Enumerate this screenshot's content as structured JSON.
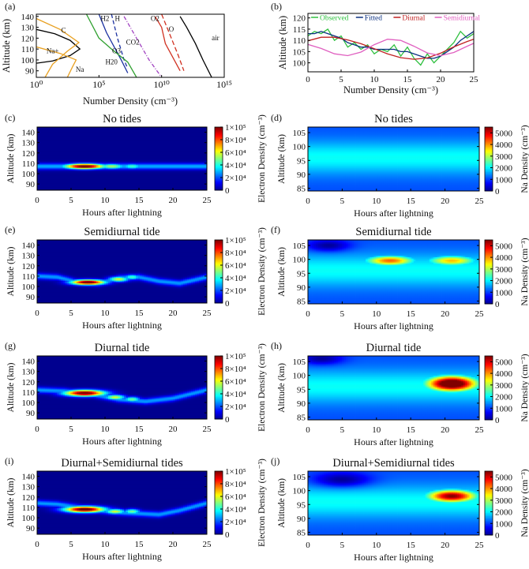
{
  "figure": {
    "colorbar_labels": {
      "electron": "Electron Density (cm⁻³)",
      "sodium": "Na Density (cm⁻³)"
    },
    "colorbar_ticks": {
      "electron": [
        "0",
        "2×10⁴",
        "4×10⁴",
        "6×10⁴",
        "8×10⁴",
        "1×10⁵"
      ],
      "sodium": [
        "0",
        "1000",
        "2000",
        "3000",
        "4000",
        "5000"
      ]
    },
    "colormap": [
      "#00008f",
      "#0000ff",
      "#0080ff",
      "#00ffff",
      "#80ff80",
      "#ffff00",
      "#ff8000",
      "#ff0000",
      "#800000"
    ]
  },
  "chart_data": [
    {
      "panel": "(a)",
      "type": "line",
      "title": "",
      "xlabel": "Number Density (cm⁻³)",
      "ylabel": "Altitude (km)",
      "x_scale": "log",
      "xlim": [
        1,
        1000000000000000.0
      ],
      "ylim": [
        84,
        142
      ],
      "x_ticks": [
        1,
        100000,
        10000000000,
        1000000000000000
      ],
      "x_tick_labels": [
        "10⁰",
        "10⁵",
        "10¹⁰",
        "10¹⁵"
      ],
      "y_ticks": [
        90,
        100,
        110,
        120,
        130,
        140
      ],
      "series": [
        {
          "name": "air",
          "color": "#000000",
          "dash": "",
          "x": [
            300000000000.0,
            1000000000000.0,
            5000000000000.0,
            20000000000000.0,
            100000000000000.0
          ],
          "y": [
            140,
            130,
            115,
            100,
            84
          ]
        },
        {
          "name": "O",
          "color": "#d03020",
          "dash": "",
          "x": [
            3000000000.0,
            10000000000.0,
            20000000000.0,
            300000000000.0
          ],
          "y": [
            140,
            130,
            115,
            90
          ]
        },
        {
          "name": "O2",
          "color": "#d03020",
          "dash": "6,3",
          "x": [
            10000000000.0,
            40000000000.0,
            200000000000.0,
            600000000000.0
          ],
          "y": [
            142,
            125,
            105,
            90
          ]
        },
        {
          "name": "CO2",
          "color": "#a040c0",
          "dash": "5,2,1,2",
          "x": [
            10000000.0,
            100000000.0,
            1000000000.0,
            10000000000.0
          ],
          "y": [
            140,
            120,
            100,
            84
          ]
        },
        {
          "name": "H2O",
          "color": "#1a30a0",
          "dash": "",
          "x": [
            100000.0,
            400000.0,
            6000000.0,
            20000000.0
          ],
          "y": [
            142,
            125,
            100,
            88
          ]
        },
        {
          "name": "H",
          "color": "#1a30a0",
          "dash": "5,3",
          "x": [
            1000000.0,
            3000000.0,
            10000000.0,
            20000000.0
          ],
          "y": [
            142,
            120,
            100,
            92
          ]
        },
        {
          "name": "O3",
          "color": "#30a030",
          "dash": "",
          "x": [
            10000.0,
            100000.0,
            1000000.0,
            20000000.0,
            100000000.0
          ],
          "y": [
            142,
            120,
            110,
            98,
            84
          ]
        },
        {
          "name": "Na+",
          "color": "#000000",
          "dash": "",
          "x": [
            1,
            30,
            500,
            3000,
            500,
            20,
            1
          ],
          "y": [
            128,
            124,
            118,
            110,
            104,
            99,
            97
          ]
        },
        {
          "name": "C",
          "color": "#e8a020",
          "dash": "",
          "x": [
            1,
            80,
            2500,
            300,
            20,
            5
          ],
          "y": [
            138,
            128,
            116,
            108,
            96,
            84
          ]
        },
        {
          "name": "Na",
          "color": "#e8a020",
          "dash": "",
          "x": [
            1,
            80,
            1500,
            800,
            300
          ],
          "y": [
            112,
            106,
            100,
            94,
            84
          ]
        }
      ],
      "annotations": [
        {
          "text": "H2",
          "x": 300000,
          "y": 136
        },
        {
          "text": "H",
          "x": 3000000,
          "y": 136
        },
        {
          "text": "C",
          "x": 150,
          "y": 125
        },
        {
          "text": "Na+",
          "x": 20,
          "y": 106
        },
        {
          "text": "O3",
          "x": 2500000,
          "y": 106
        },
        {
          "text": "CO2",
          "x": 50000000,
          "y": 114
        },
        {
          "text": "H20",
          "x": 1000000,
          "y": 96
        },
        {
          "text": "Na",
          "x": 3000,
          "y": 89
        },
        {
          "text": "O2",
          "x": 3000000000,
          "y": 136
        },
        {
          "text": "O",
          "x": 60000000000,
          "y": 126
        },
        {
          "text": "air",
          "x": 200000000000000,
          "y": 118
        }
      ]
    },
    {
      "panel": "(b)",
      "type": "line",
      "title": "",
      "xlabel": "Number Density (cm⁻³)",
      "ylabel": "Altitude (km)",
      "xlim": [
        0,
        25
      ],
      "ylim": [
        96,
        122
      ],
      "x_ticks": [
        0,
        5,
        10,
        15,
        20,
        25
      ],
      "y_ticks": [
        100,
        105,
        110,
        115,
        120
      ],
      "legend": "top",
      "series": [
        {
          "name": "Observed",
          "color": "#30c040",
          "x": [
            0,
            1,
            2,
            3,
            4,
            5,
            6,
            7,
            8,
            9,
            10,
            11,
            12,
            13,
            14,
            15,
            16,
            17,
            18,
            19,
            20,
            21,
            22,
            23,
            24,
            25
          ],
          "y": [
            112,
            114,
            113,
            115,
            110,
            112,
            107,
            109,
            106,
            108,
            104,
            106,
            105,
            108,
            103,
            107,
            102,
            99,
            104,
            100,
            103,
            106,
            109,
            114,
            111,
            113
          ]
        },
        {
          "name": "Fitted",
          "color": "#0a3080",
          "x": [
            0,
            1,
            2,
            3,
            4,
            5,
            6,
            7,
            8,
            9,
            10,
            11,
            12,
            13,
            14,
            15,
            16,
            17,
            18,
            19,
            20,
            21,
            22,
            23,
            24,
            25
          ],
          "y": [
            113,
            113,
            114,
            113,
            112,
            111,
            109,
            108,
            107,
            107,
            106,
            106,
            106,
            106,
            105,
            105,
            104,
            103,
            102,
            102,
            103,
            105,
            107,
            110,
            112,
            114
          ]
        },
        {
          "name": "Diurnal",
          "color": "#c02020",
          "x": [
            0,
            2,
            4,
            6,
            8,
            10,
            12,
            14,
            16,
            18,
            20,
            22,
            24,
            25
          ],
          "y": [
            109.8,
            111.4,
            111.4,
            110.2,
            108.5,
            106.3,
            104.0,
            102.3,
            101.6,
            102.2,
            104.3,
            107.1,
            109.5,
            110.5
          ]
        },
        {
          "name": "Semidiurnal",
          "color": "#e060c0",
          "x": [
            0,
            2,
            4,
            6,
            8,
            10,
            12,
            14,
            16,
            18,
            20,
            22,
            24,
            25
          ],
          "y": [
            108.2,
            106.4,
            104.0,
            103.2,
            104.8,
            108.1,
            110.5,
            110.0,
            107.4,
            104.4,
            103.2,
            104.6,
            107.4,
            108.7
          ]
        }
      ]
    },
    {
      "panel": "(c)",
      "type": "heatmap",
      "title": "No tides",
      "variable": "electron",
      "xlabel": "Hours after lightning",
      "ylabel": "Altitude (km)",
      "xlim": [
        0,
        25
      ],
      "ylim": [
        84,
        145
      ],
      "x_ticks": [
        0,
        5,
        10,
        15,
        20,
        25
      ],
      "y_ticks": [
        90,
        100,
        110,
        120,
        130,
        140
      ],
      "zlim": [
        0,
        100000
      ],
      "features": [
        {
          "kind": "layer",
          "t": [
            0,
            25
          ],
          "alt": [
            107,
            107
          ],
          "width_km": 3,
          "value": 30000
        },
        {
          "kind": "blob",
          "t": 7,
          "alt": 107,
          "dt": 3,
          "dalt": 2.5,
          "value": 110000
        },
        {
          "kind": "blob",
          "t": 11,
          "alt": 107,
          "dt": 2,
          "dalt": 2.5,
          "value": 55000
        },
        {
          "kind": "blob",
          "t": 14,
          "alt": 107,
          "dt": 1.5,
          "dalt": 2.5,
          "value": 45000
        }
      ]
    },
    {
      "panel": "(d)",
      "type": "heatmap",
      "title": "No tides",
      "variable": "sodium",
      "xlabel": "Hours after lightning",
      "ylabel": "Altitude (km)",
      "xlim": [
        0,
        25
      ],
      "ylim": [
        84,
        107
      ],
      "x_ticks": [
        0,
        5,
        10,
        15,
        20,
        25
      ],
      "y_ticks": [
        85,
        90,
        95,
        100,
        105
      ],
      "zlim": [
        0,
        5500
      ],
      "features": [
        {
          "kind": "background",
          "alt_center": 96,
          "width_km": 6,
          "value": 2100,
          "floor": 1100
        }
      ]
    },
    {
      "panel": "(e)",
      "type": "heatmap",
      "title": "Semidiurnal tide",
      "variable": "electron",
      "xlabel": "Hours after lightning",
      "ylabel": "Altitude (km)",
      "xlim": [
        0,
        25
      ],
      "ylim": [
        84,
        145
      ],
      "x_ticks": [
        0,
        5,
        10,
        15,
        20,
        25
      ],
      "y_ticks": [
        90,
        100,
        110,
        120,
        130,
        140
      ],
      "zlim": [
        0,
        100000
      ],
      "features": [
        {
          "kind": "layer",
          "t": [
            0,
            3,
            6,
            9,
            12,
            15,
            18,
            21,
            25
          ],
          "alt": [
            110,
            109,
            104,
            103,
            108,
            109,
            105,
            103,
            109
          ],
          "width_km": 3,
          "value": 28000
        },
        {
          "kind": "blob",
          "t": 7.5,
          "alt": 104,
          "dt": 2.5,
          "dalt": 2.5,
          "value": 110000
        },
        {
          "kind": "blob",
          "t": 12,
          "alt": 107,
          "dt": 1.5,
          "dalt": 2.5,
          "value": 60000
        },
        {
          "kind": "blob",
          "t": 14,
          "alt": 109,
          "dt": 1.2,
          "dalt": 2.5,
          "value": 45000
        }
      ]
    },
    {
      "panel": "(f)",
      "type": "heatmap",
      "title": "Semidiurnal tide",
      "variable": "sodium",
      "xlabel": "Hours after lightning",
      "ylabel": "Altitude (km)",
      "xlim": [
        0,
        25
      ],
      "ylim": [
        84,
        107
      ],
      "x_ticks": [
        0,
        5,
        10,
        15,
        20,
        25
      ],
      "y_ticks": [
        85,
        90,
        95,
        100,
        105
      ],
      "zlim": [
        0,
        5500
      ],
      "features": [
        {
          "kind": "background",
          "alt_center": 96,
          "width_km": 6,
          "value": 2100,
          "floor": 1100
        },
        {
          "kind": "blob",
          "t": 12,
          "alt": 99.5,
          "dt": 4,
          "dalt": 2,
          "value": 4300
        },
        {
          "kind": "blob",
          "t": 21,
          "alt": 99.5,
          "dt": 4,
          "dalt": 2,
          "value": 3800
        },
        {
          "kind": "blob",
          "t": 3,
          "alt": 105,
          "dt": 3,
          "dalt": 2,
          "value": 0,
          "mode": "deplete"
        }
      ]
    },
    {
      "panel": "(g)",
      "type": "heatmap",
      "title": "Diurnal tide",
      "variable": "electron",
      "xlabel": "Hours after lightning",
      "ylabel": "Altitude (km)",
      "xlim": [
        0,
        25
      ],
      "ylim": [
        84,
        145
      ],
      "x_ticks": [
        0,
        5,
        10,
        15,
        20,
        25
      ],
      "y_ticks": [
        90,
        100,
        110,
        120,
        130,
        140
      ],
      "zlim": [
        0,
        100000
      ],
      "features": [
        {
          "kind": "layer",
          "t": [
            0,
            4,
            8,
            12,
            16,
            20,
            25
          ],
          "alt": [
            112,
            111,
            108,
            103,
            101,
            104,
            112
          ],
          "width_km": 3,
          "value": 28000
        },
        {
          "kind": "blob",
          "t": 7,
          "alt": 109,
          "dt": 3,
          "dalt": 3,
          "value": 110000
        },
        {
          "kind": "blob",
          "t": 11.5,
          "alt": 105,
          "dt": 1.5,
          "dalt": 2.5,
          "value": 60000
        },
        {
          "kind": "blob",
          "t": 14,
          "alt": 103,
          "dt": 1.2,
          "dalt": 2.5,
          "value": 50000
        }
      ]
    },
    {
      "panel": "(h)",
      "type": "heatmap",
      "title": "Diurnal tide",
      "variable": "sodium",
      "xlabel": "Hours after lightning",
      "ylabel": "Altitude (km)",
      "xlim": [
        0,
        25
      ],
      "ylim": [
        84,
        107
      ],
      "x_ticks": [
        0,
        5,
        10,
        15,
        20,
        25
      ],
      "y_ticks": [
        85,
        90,
        95,
        100,
        105
      ],
      "zlim": [
        0,
        5500
      ],
      "features": [
        {
          "kind": "background",
          "alt_center": 96,
          "width_km": 6,
          "value": 2100,
          "floor": 1100
        },
        {
          "kind": "blob",
          "t": 21,
          "alt": 97,
          "dt": 4,
          "dalt": 3,
          "value": 6500
        },
        {
          "kind": "blob",
          "t": 2,
          "alt": 106,
          "dt": 3,
          "dalt": 2,
          "value": 0,
          "mode": "deplete"
        }
      ]
    },
    {
      "panel": "(i)",
      "type": "heatmap",
      "title": "Diurnal+Semidiurnal tides",
      "variable": "electron",
      "xlabel": "Hours after lightning",
      "ylabel": "Altitude (km)",
      "xlim": [
        0,
        25
      ],
      "ylim": [
        84,
        145
      ],
      "x_ticks": [
        0,
        5,
        10,
        15,
        20,
        25
      ],
      "y_ticks": [
        90,
        100,
        110,
        120,
        130,
        140
      ],
      "zlim": [
        0,
        100000
      ],
      "features": [
        {
          "kind": "layer",
          "t": [
            0,
            3,
            6,
            9,
            12,
            15,
            18,
            21,
            25
          ],
          "alt": [
            114,
            113,
            110,
            107,
            105,
            104,
            103,
            107,
            114
          ],
          "width_km": 3,
          "value": 28000
        },
        {
          "kind": "blob",
          "t": 7,
          "alt": 108,
          "dt": 3,
          "dalt": 3,
          "value": 110000
        },
        {
          "kind": "blob",
          "t": 11.5,
          "alt": 106,
          "dt": 1.5,
          "dalt": 2.5,
          "value": 60000
        },
        {
          "kind": "blob",
          "t": 14,
          "alt": 106,
          "dt": 1.2,
          "dalt": 2.5,
          "value": 50000
        }
      ]
    },
    {
      "panel": "(j)",
      "type": "heatmap",
      "title": "Diurnal+Semidiurnal tides",
      "variable": "sodium",
      "xlabel": "Hours after lightning",
      "ylabel": "Altitude (km)",
      "xlim": [
        0,
        25
      ],
      "ylim": [
        84,
        107
      ],
      "x_ticks": [
        0,
        5,
        10,
        15,
        20,
        25
      ],
      "y_ticks": [
        85,
        90,
        95,
        100,
        105
      ],
      "zlim": [
        0,
        5500
      ],
      "features": [
        {
          "kind": "background",
          "alt_center": 96,
          "width_km": 6,
          "value": 2100,
          "floor": 1100
        },
        {
          "kind": "blob",
          "t": 21,
          "alt": 98,
          "dt": 4,
          "dalt": 2.5,
          "value": 5500
        },
        {
          "kind": "blob",
          "t": 5,
          "alt": 104,
          "dt": 4,
          "dalt": 2.5,
          "value": 0,
          "mode": "deplete"
        }
      ]
    }
  ]
}
